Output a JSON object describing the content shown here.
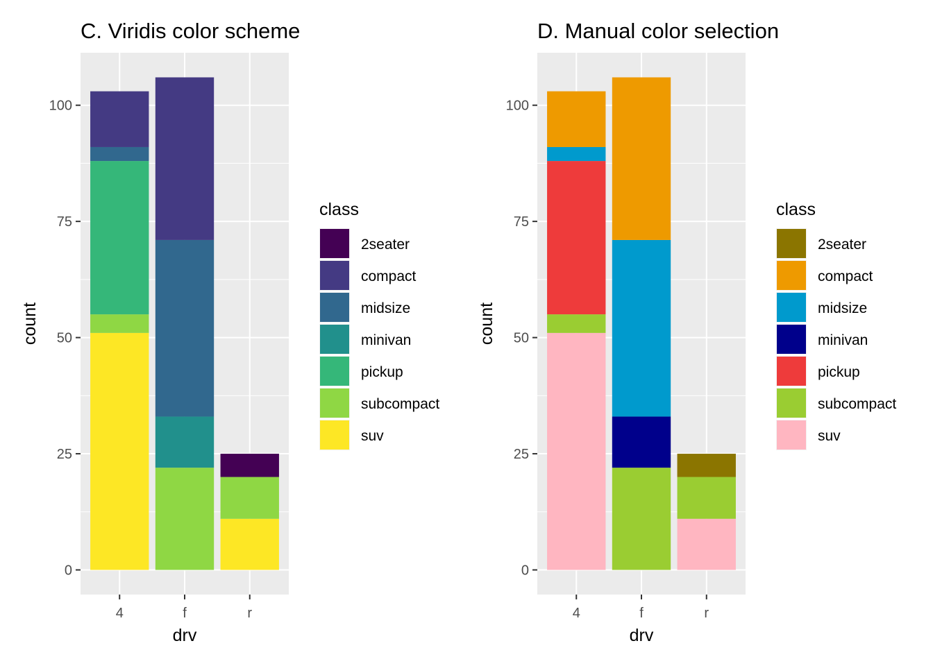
{
  "chart_data": [
    {
      "type": "bar",
      "stacked": true,
      "title": "C. Viridis color scheme",
      "xlabel": "drv",
      "ylabel": "count",
      "categories": [
        "4",
        "f",
        "r"
      ],
      "ylim": [
        0,
        110
      ],
      "yticks": [
        0,
        25,
        50,
        75,
        100
      ],
      "grid": true,
      "legend": {
        "title": "class",
        "position": "right"
      },
      "series": [
        {
          "name": "2seater",
          "color": "#440154",
          "values": [
            0,
            0,
            5
          ]
        },
        {
          "name": "compact",
          "color": "#443A83",
          "values": [
            12,
            35,
            0
          ]
        },
        {
          "name": "midsize",
          "color": "#31688E",
          "values": [
            3,
            38,
            0
          ]
        },
        {
          "name": "minivan",
          "color": "#21908C",
          "values": [
            0,
            11,
            0
          ]
        },
        {
          "name": "pickup",
          "color": "#35B779",
          "values": [
            33,
            0,
            0
          ]
        },
        {
          "name": "subcompact",
          "color": "#8FD744",
          "values": [
            4,
            22,
            9
          ]
        },
        {
          "name": "suv",
          "color": "#FDE725",
          "values": [
            51,
            0,
            11
          ]
        }
      ]
    },
    {
      "type": "bar",
      "stacked": true,
      "title": "D. Manual color selection",
      "xlabel": "drv",
      "ylabel": "count",
      "categories": [
        "4",
        "f",
        "r"
      ],
      "ylim": [
        0,
        110
      ],
      "yticks": [
        0,
        25,
        50,
        75,
        100
      ],
      "grid": true,
      "legend": {
        "title": "class",
        "position": "right"
      },
      "series": [
        {
          "name": "2seater",
          "color": "#8B7500",
          "values": [
            0,
            0,
            5
          ]
        },
        {
          "name": "compact",
          "color": "#EE9A00",
          "values": [
            12,
            35,
            0
          ]
        },
        {
          "name": "midsize",
          "color": "#009ACD",
          "values": [
            3,
            38,
            0
          ]
        },
        {
          "name": "minivan",
          "color": "#00008B",
          "values": [
            0,
            11,
            0
          ]
        },
        {
          "name": "pickup",
          "color": "#EE3B3B",
          "values": [
            33,
            0,
            0
          ]
        },
        {
          "name": "subcompact",
          "color": "#9ACD32",
          "values": [
            4,
            22,
            9
          ]
        },
        {
          "name": "suv",
          "color": "#FFB6C1",
          "values": [
            51,
            0,
            11
          ]
        }
      ]
    }
  ]
}
